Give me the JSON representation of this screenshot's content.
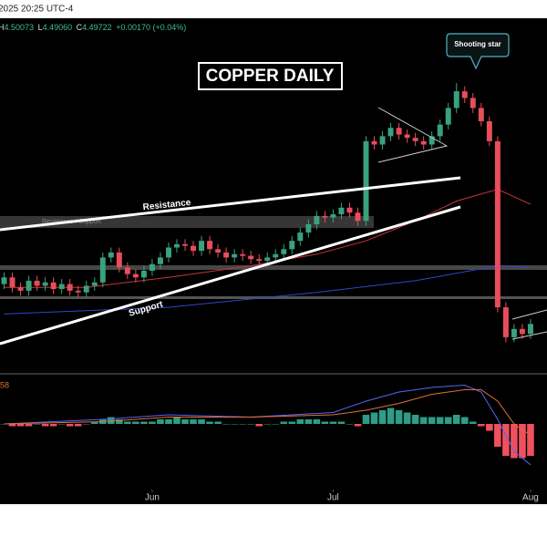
{
  "chart_data": {
    "type": "candlestick",
    "title": "COPPER DAILY",
    "info": {
      "datetime": "2025 20:25 UTC-4",
      "ohlc": [
        "H",
        "4.50073",
        "L",
        "4.49060",
        "C",
        "4.49722",
        "+0.00170 (+0.04%)"
      ]
    },
    "annotations": {
      "callout": "Shooting star",
      "resistance": "Resistance",
      "support": "Support",
      "zone": "Resistance / Support"
    },
    "up_color": "#3aa17e",
    "down_color": "#e84d5b",
    "open": [
      4.74,
      4.78,
      4.72,
      4.7,
      4.76,
      4.73,
      4.75,
      4.71,
      4.74,
      4.7,
      4.69,
      4.73,
      4.75,
      4.9,
      4.93,
      4.84,
      4.8,
      4.78,
      4.82,
      4.86,
      4.9,
      4.96,
      4.98,
      4.97,
      4.94,
      5.0,
      4.95,
      4.93,
      4.9,
      4.92,
      4.91,
      4.89,
      4.88,
      4.9,
      4.92,
      4.95,
      5.0,
      5.05,
      5.1,
      5.15,
      5.14,
      5.16,
      5.2,
      5.17,
      5.12,
      5.6,
      5.58,
      5.63,
      5.68,
      5.64,
      5.62,
      5.6,
      5.58,
      5.63,
      5.7,
      5.8,
      5.9,
      5.86,
      5.8,
      5.72,
      5.6,
      4.6,
      4.42,
      4.47,
      4.44
    ],
    "high": [
      4.81,
      4.81,
      4.75,
      4.79,
      4.79,
      4.78,
      4.78,
      4.77,
      4.77,
      4.73,
      4.76,
      4.78,
      4.93,
      4.96,
      4.96,
      4.87,
      4.83,
      4.85,
      4.89,
      4.93,
      4.99,
      5.01,
      5.01,
      5.0,
      5.03,
      5.03,
      4.98,
      4.96,
      4.95,
      4.95,
      4.94,
      4.92,
      4.93,
      4.95,
      4.98,
      5.03,
      5.08,
      5.13,
      5.18,
      5.18,
      5.19,
      5.23,
      5.23,
      5.2,
      5.63,
      5.63,
      5.66,
      5.71,
      5.71,
      5.67,
      5.65,
      5.63,
      5.66,
      5.73,
      5.83,
      5.95,
      5.93,
      5.89,
      5.83,
      5.75,
      5.63,
      4.63,
      4.5,
      4.5,
      4.53
    ],
    "low": [
      4.71,
      4.69,
      4.67,
      4.67,
      4.7,
      4.7,
      4.68,
      4.68,
      4.67,
      4.66,
      4.66,
      4.7,
      4.72,
      4.87,
      4.81,
      4.77,
      4.75,
      4.75,
      4.79,
      4.83,
      4.87,
      4.93,
      4.94,
      4.91,
      4.91,
      4.92,
      4.9,
      4.87,
      4.87,
      4.88,
      4.86,
      4.85,
      4.85,
      4.87,
      4.89,
      4.92,
      4.97,
      5.02,
      5.07,
      5.11,
      5.11,
      5.13,
      5.14,
      5.09,
      5.09,
      5.55,
      5.55,
      5.6,
      5.61,
      5.59,
      5.57,
      5.55,
      5.55,
      5.6,
      5.67,
      5.77,
      5.83,
      5.77,
      5.69,
      5.57,
      4.57,
      4.39,
      4.39,
      4.41,
      4.41
    ],
    "close": [
      4.78,
      4.72,
      4.7,
      4.76,
      4.73,
      4.75,
      4.71,
      4.74,
      4.7,
      4.69,
      4.73,
      4.75,
      4.9,
      4.93,
      4.84,
      4.8,
      4.78,
      4.82,
      4.86,
      4.9,
      4.96,
      4.98,
      4.97,
      4.94,
      5.0,
      4.95,
      4.93,
      4.9,
      4.92,
      4.91,
      4.89,
      4.88,
      4.9,
      4.92,
      4.95,
      5.0,
      5.05,
      5.1,
      5.15,
      5.14,
      5.16,
      5.2,
      5.17,
      5.12,
      5.6,
      5.58,
      5.63,
      5.68,
      5.64,
      5.62,
      5.6,
      5.58,
      5.63,
      5.7,
      5.8,
      5.9,
      5.86,
      5.8,
      5.72,
      5.6,
      4.6,
      4.42,
      4.47,
      4.44,
      4.5
    ],
    "xlim": [
      -0.5,
      66
    ],
    "ylim": [
      4.2,
      6.34
    ],
    "xticks": [
      {
        "value": 18,
        "label": "Jun"
      },
      {
        "value": 40,
        "label": "Jul"
      },
      {
        "value": 64,
        "label": "Aug"
      }
    ],
    "moving_averages": [
      {
        "color": "#c8343c",
        "x": [
          0,
          10,
          20,
          30,
          38,
          44,
          50,
          55,
          60,
          64
        ],
        "values": [
          4.72,
          4.72,
          4.78,
          4.85,
          4.92,
          5.0,
          5.12,
          5.24,
          5.31,
          5.22
        ]
      },
      {
        "color": "#3445c8",
        "x": [
          0,
          20,
          38,
          50,
          60,
          64
        ],
        "values": [
          4.56,
          4.6,
          4.69,
          4.76,
          4.85,
          4.84
        ]
      }
    ],
    "macd": {
      "label": "58",
      "ylim": [
        -0.3,
        0.2
      ],
      "pos_color": "#2f9c86",
      "neg_color": "#f0505e",
      "histogram": [
        0.0,
        -0.01,
        -0.01,
        -0.01,
        0.0,
        -0.01,
        -0.01,
        0.0,
        -0.01,
        -0.01,
        0.0,
        0.01,
        0.02,
        0.03,
        0.02,
        0.01,
        0.01,
        0.01,
        0.01,
        0.02,
        0.02,
        0.03,
        0.02,
        0.02,
        0.02,
        0.01,
        0.01,
        0.0,
        0.0,
        0.0,
        0.0,
        -0.01,
        0.0,
        0.0,
        0.01,
        0.01,
        0.02,
        0.02,
        0.02,
        0.01,
        0.01,
        0.01,
        0.0,
        -0.01,
        0.04,
        0.05,
        0.06,
        0.07,
        0.06,
        0.05,
        0.04,
        0.03,
        0.03,
        0.03,
        0.03,
        0.04,
        0.03,
        0.01,
        -0.01,
        -0.03,
        -0.1,
        -0.14,
        -0.15,
        -0.15,
        -0.14
      ],
      "lines": [
        {
          "color": "#5468f0",
          "x": [
            0,
            12,
            20,
            30,
            40,
            44,
            48,
            52,
            56,
            58,
            60,
            62,
            64
          ],
          "values": [
            0.0,
            0.02,
            0.04,
            0.03,
            0.05,
            0.1,
            0.14,
            0.16,
            0.17,
            0.14,
            0.02,
            -0.12,
            -0.18
          ]
        },
        {
          "color": "#e0703a",
          "x": [
            0,
            12,
            20,
            30,
            40,
            44,
            48,
            52,
            56,
            58,
            60,
            62,
            64
          ],
          "values": [
            0.0,
            0.01,
            0.03,
            0.03,
            0.04,
            0.06,
            0.09,
            0.13,
            0.15,
            0.15,
            0.1,
            0.0,
            -0.05
          ]
        }
      ]
    }
  }
}
